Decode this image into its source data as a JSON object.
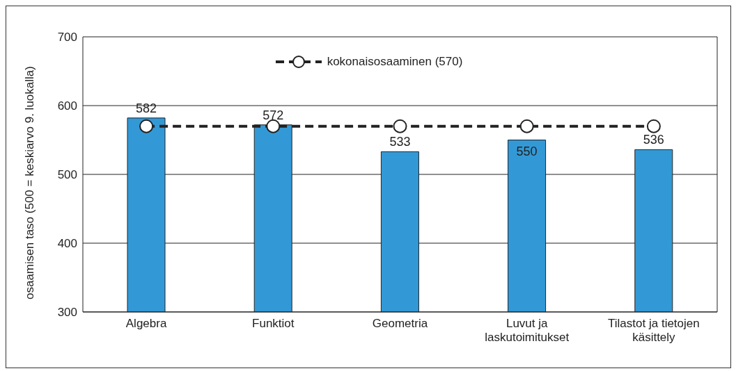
{
  "chart_data": {
    "type": "bar",
    "ylabel": "osaamisen taso (500 = keskiarvo 9. luokalla)",
    "categories": [
      "Algebra",
      "Funktiot",
      "Geometria",
      "Luvut ja laskutoimitukset",
      "Tilastot ja tietojen käsittely"
    ],
    "series": [
      {
        "color": "#3399d6",
        "values": [
          582,
          572,
          533,
          550,
          536
        ],
        "value_labels": [
          "582",
          "572",
          "533",
          "550",
          "536"
        ]
      },
      {
        "type": "line",
        "name": "kokonaisosaaminen (570)",
        "color": "#222222",
        "values": [
          570,
          570,
          570,
          570,
          570
        ],
        "marker": "circle",
        "line_style": "dashed"
      }
    ],
    "ylim": [
      300,
      700
    ],
    "yticks": [
      300,
      400,
      500,
      600,
      700
    ],
    "grid": "y",
    "legend": "top"
  }
}
